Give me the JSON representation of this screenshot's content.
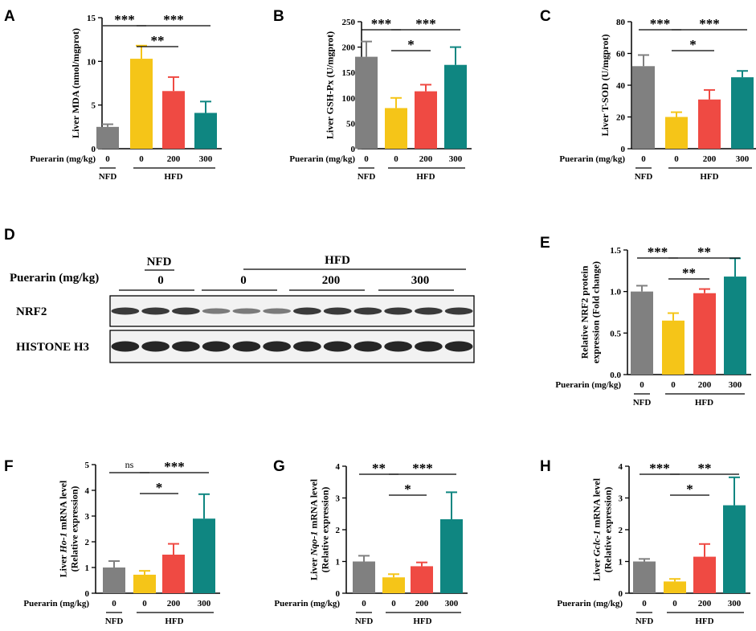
{
  "colors": {
    "NFD_0": "#808080",
    "HFD_0": "#f5c518",
    "HFD_200": "#ef4a43",
    "HFD_300": "#0f8681",
    "axis": "#000000",
    "error": "#808080"
  },
  "common": {
    "xlabel": "Puerarin (mg/kg)",
    "categories": [
      "0",
      "0",
      "200",
      "300"
    ],
    "groups": [
      "NFD",
      "HFD"
    ]
  },
  "chart_data": [
    {
      "panel": "A",
      "type": "bar",
      "ylabel": "Liver MDA (nmol/mgprot)",
      "ylim": [
        0,
        15
      ],
      "yticks": [
        0,
        5,
        10,
        15
      ],
      "values": [
        2.5,
        10.3,
        6.6,
        4.1
      ],
      "errors": [
        0.3,
        1.5,
        1.6,
        1.3
      ],
      "brackets": [
        {
          "from": 0,
          "to": 1,
          "text": "***",
          "level": 0
        },
        {
          "from": 1,
          "to": 3,
          "text": "***",
          "level": 0
        },
        {
          "from": 1,
          "to": 2,
          "text": "**",
          "level": 1
        }
      ]
    },
    {
      "panel": "B",
      "type": "bar",
      "ylabel": "Liver GSH-Px (U/mgprot)",
      "ylim": [
        0,
        250
      ],
      "yticks": [
        0,
        50,
        100,
        150,
        200,
        250
      ],
      "values": [
        181,
        80,
        113,
        165
      ],
      "errors": [
        30,
        20,
        13,
        35
      ],
      "brackets": [
        {
          "from": 0,
          "to": 1,
          "text": "***",
          "level": 0
        },
        {
          "from": 1,
          "to": 3,
          "text": "***",
          "level": 0
        },
        {
          "from": 1,
          "to": 2,
          "text": "*",
          "level": 1
        }
      ]
    },
    {
      "panel": "C",
      "type": "bar",
      "ylabel": "Liver T-SOD (U/mgprot)",
      "ylim": [
        0,
        80
      ],
      "yticks": [
        0,
        20,
        40,
        60,
        80
      ],
      "values": [
        52,
        20,
        31,
        45
      ],
      "errors": [
        7,
        3,
        6,
        4
      ],
      "brackets": [
        {
          "from": 0,
          "to": 1,
          "text": "***",
          "level": 0
        },
        {
          "from": 1,
          "to": 3,
          "text": "***",
          "level": 0
        },
        {
          "from": 1,
          "to": 2,
          "text": "*",
          "level": 1
        }
      ]
    },
    {
      "panel": "E",
      "type": "bar",
      "ylabel": "Relative NRF2 protein expression (Fold change)",
      "ylabel_lines": [
        "Relative NRF2 protein",
        "expression (Fold change)"
      ],
      "ylim": [
        0,
        1.5
      ],
      "yticks": [
        "0.0",
        "0.5",
        "1.0",
        "1.5"
      ],
      "values": [
        1.0,
        0.65,
        0.98,
        1.18
      ],
      "errors": [
        0.07,
        0.09,
        0.05,
        0.22
      ],
      "brackets": [
        {
          "from": 0,
          "to": 1,
          "text": "***",
          "level": 0
        },
        {
          "from": 1,
          "to": 3,
          "text": "**",
          "level": 0
        },
        {
          "from": 1,
          "to": 2,
          "text": "**",
          "level": 1
        }
      ]
    },
    {
      "panel": "F",
      "type": "bar",
      "ylabel": "Liver Ho-1 mRNA level (Relative expression)",
      "ylabel_lines": [
        "Liver Ho-1 mRNA level",
        "(Relative expression)"
      ],
      "gene": "Ho-1",
      "ylim": [
        0,
        5
      ],
      "yticks": [
        0,
        1,
        2,
        3,
        4,
        5
      ],
      "values": [
        1.0,
        0.72,
        1.5,
        2.9
      ],
      "errors": [
        0.25,
        0.15,
        0.42,
        0.95
      ],
      "brackets": [
        {
          "from": 0,
          "to": 1,
          "text": "ns",
          "level": 0
        },
        {
          "from": 1,
          "to": 3,
          "text": "***",
          "level": 0
        },
        {
          "from": 1,
          "to": 2,
          "text": "*",
          "level": 1
        }
      ]
    },
    {
      "panel": "G",
      "type": "bar",
      "ylabel": "Liver Nqo-1 mRNA level (Relative expression)",
      "ylabel_lines": [
        "Liver Nqo-1 mRNA level",
        "(Relative expression)"
      ],
      "gene": "Nqo-1",
      "ylim": [
        0,
        4
      ],
      "yticks": [
        0,
        1,
        2,
        3,
        4
      ],
      "values": [
        1.0,
        0.5,
        0.85,
        2.33
      ],
      "errors": [
        0.18,
        0.1,
        0.12,
        0.85
      ],
      "brackets": [
        {
          "from": 0,
          "to": 1,
          "text": "**",
          "level": 0
        },
        {
          "from": 1,
          "to": 3,
          "text": "***",
          "level": 0
        },
        {
          "from": 1,
          "to": 2,
          "text": "*",
          "level": 1
        }
      ]
    },
    {
      "panel": "H",
      "type": "bar",
      "ylabel": "Liver Gclc-1 mRNA level (Relative expression)",
      "ylabel_lines": [
        "Liver Gclc-1 mRNA level",
        "(Relative expression)"
      ],
      "gene": "Gclc-1",
      "ylim": [
        0,
        4
      ],
      "yticks": [
        0,
        1,
        2,
        3,
        4
      ],
      "values": [
        1.0,
        0.37,
        1.15,
        2.77
      ],
      "errors": [
        0.08,
        0.08,
        0.4,
        0.88
      ],
      "brackets": [
        {
          "from": 0,
          "to": 1,
          "text": "***",
          "level": 0
        },
        {
          "from": 1,
          "to": 3,
          "text": "**",
          "level": 0
        },
        {
          "from": 1,
          "to": 2,
          "text": "*",
          "level": 1
        }
      ]
    }
  ],
  "blot": {
    "panel": "D",
    "xlabel": "Puerarin (mg/kg)",
    "groups": [
      "NFD",
      "HFD"
    ],
    "doses": [
      "0",
      "0",
      "200",
      "300"
    ],
    "bands": [
      "NRF2",
      "HISTONE H3"
    ],
    "lanes_per_dose": 3
  }
}
